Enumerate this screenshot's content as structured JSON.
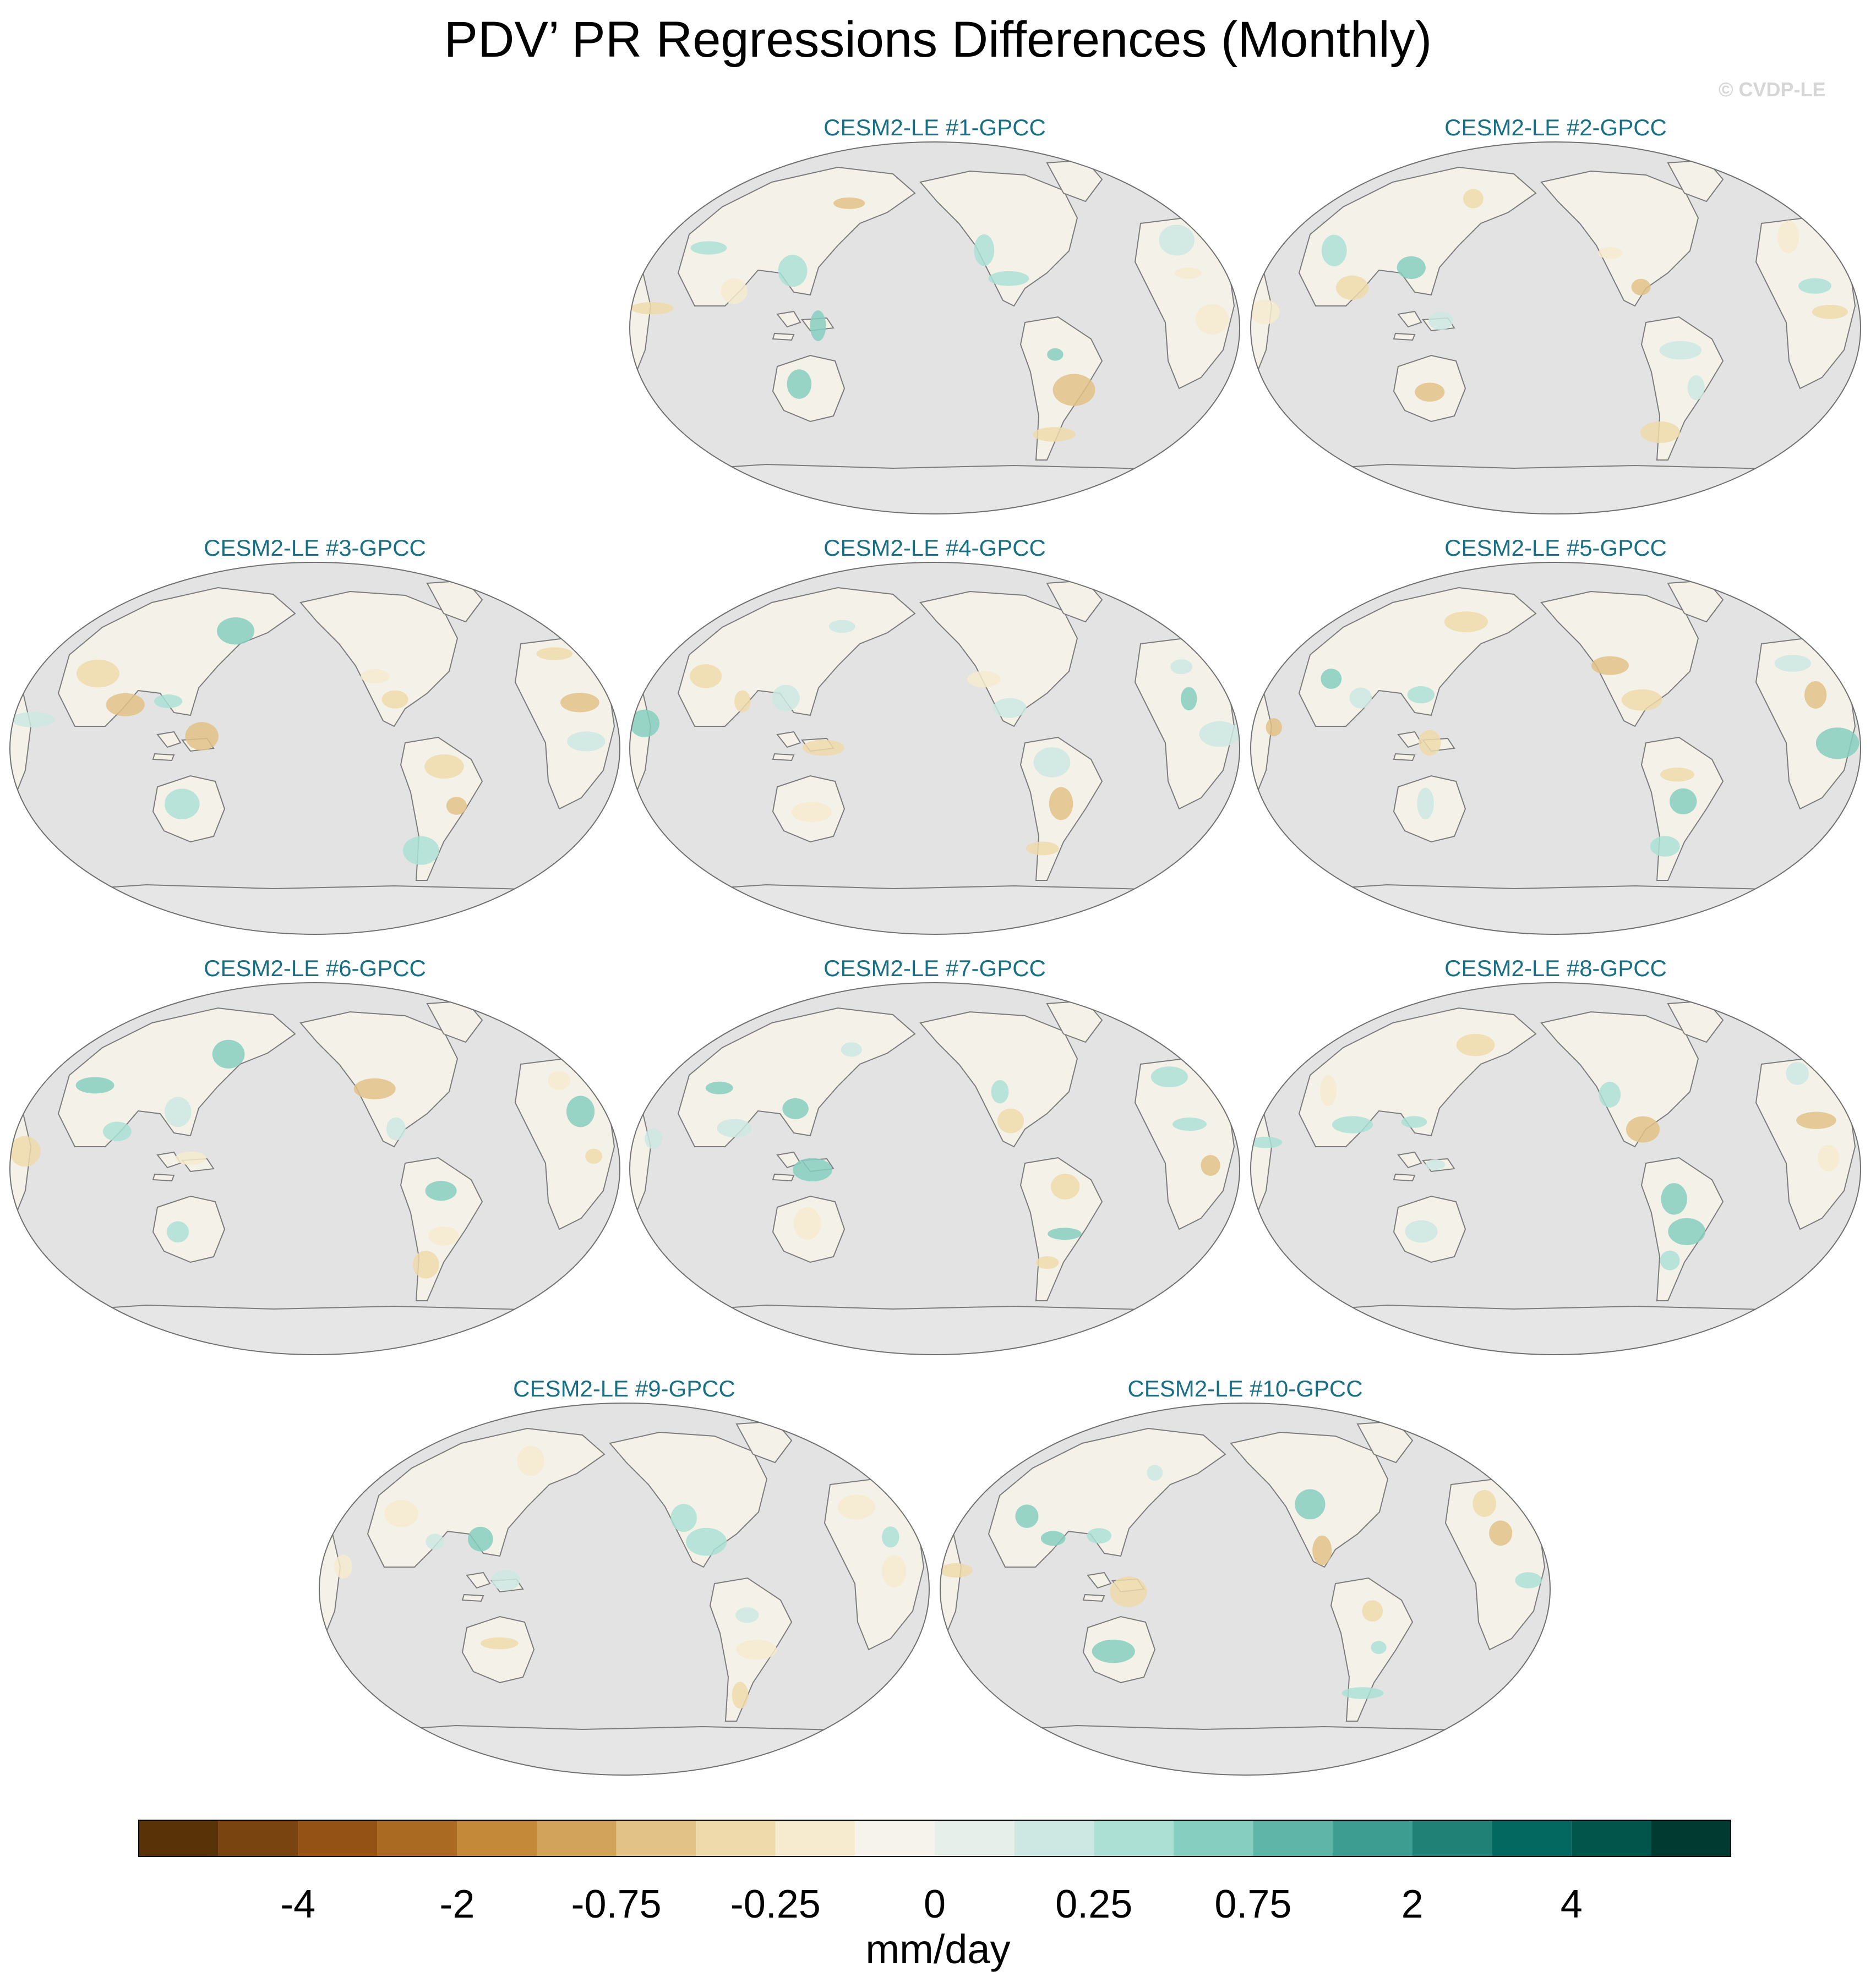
{
  "title": "PDV’ PR Regressions Differences (Monthly)",
  "watermark": "© CVDP-LE",
  "panels": [
    {
      "label": "CESM2-LE #1-GPCC"
    },
    {
      "label": "CESM2-LE #2-GPCC"
    },
    {
      "label": "CESM2-LE #3-GPCC"
    },
    {
      "label": "CESM2-LE #4-GPCC"
    },
    {
      "label": "CESM2-LE #5-GPCC"
    },
    {
      "label": "CESM2-LE #6-GPCC"
    },
    {
      "label": "CESM2-LE #7-GPCC"
    },
    {
      "label": "CESM2-LE #8-GPCC"
    },
    {
      "label": "CESM2-LE #9-GPCC"
    },
    {
      "label": "CESM2-LE #10-GPCC"
    }
  ],
  "colorbar": {
    "units": "mm/day",
    "tick_labels": [
      "-4",
      "-2",
      "-0.75",
      "-0.25",
      "0",
      "0.25",
      "0.75",
      "2",
      "4"
    ],
    "colors": [
      "#5a3208",
      "#7a4410",
      "#945315",
      "#aa6a22",
      "#c48a3a",
      "#d2a35a",
      "#e2c287",
      "#eedaaa",
      "#f6ebcf",
      "#f5f3ec",
      "#e6efea",
      "#cde8e2",
      "#ace0d5",
      "#86cfc0",
      "#5fb6a8",
      "#3d9d91",
      "#208277",
      "#03685f",
      "#01554b",
      "#003a31"
    ]
  }
}
